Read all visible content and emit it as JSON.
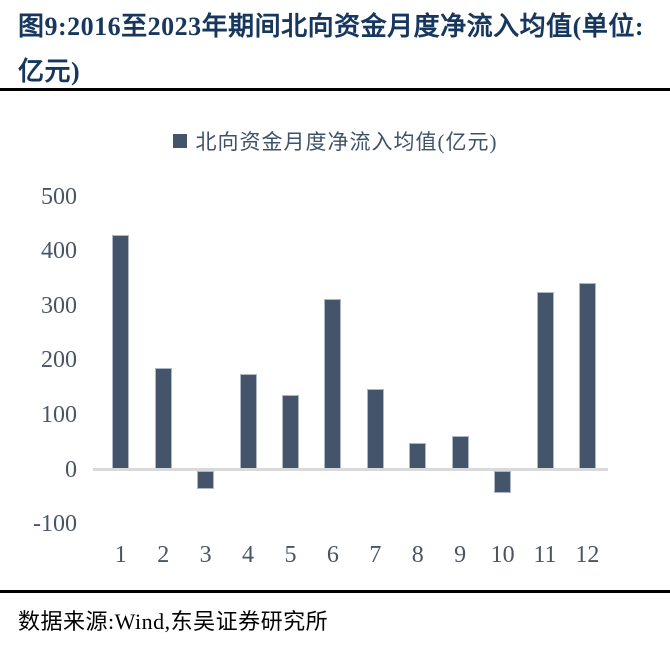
{
  "page": {
    "title": "图9:2016至2023年期间北向资金月度净流入均值(单位:亿元)",
    "source": "数据来源:Wind,东吴证券研究所"
  },
  "chart_data": {
    "type": "bar",
    "title": "北向资金月度净流入均值(亿元)",
    "legend": [
      "北向资金月度净流入均值(亿元)"
    ],
    "legend_position": "top-center",
    "categories": [
      "1",
      "2",
      "3",
      "4",
      "5",
      "6",
      "7",
      "8",
      "9",
      "10",
      "11",
      "12"
    ],
    "values": [
      430,
      186,
      -30,
      175,
      136,
      312,
      148,
      48,
      62,
      -38,
      325,
      341
    ],
    "xlabel": "",
    "ylabel": "",
    "ylim": [
      -100,
      500
    ],
    "yticks": [
      500,
      400,
      300,
      200,
      100,
      0,
      -100
    ],
    "grid": false,
    "bar_color": "#44546A",
    "axis_line_color": "#D9D9D9",
    "tick_color": "#485565",
    "title_color": "#17375E"
  }
}
